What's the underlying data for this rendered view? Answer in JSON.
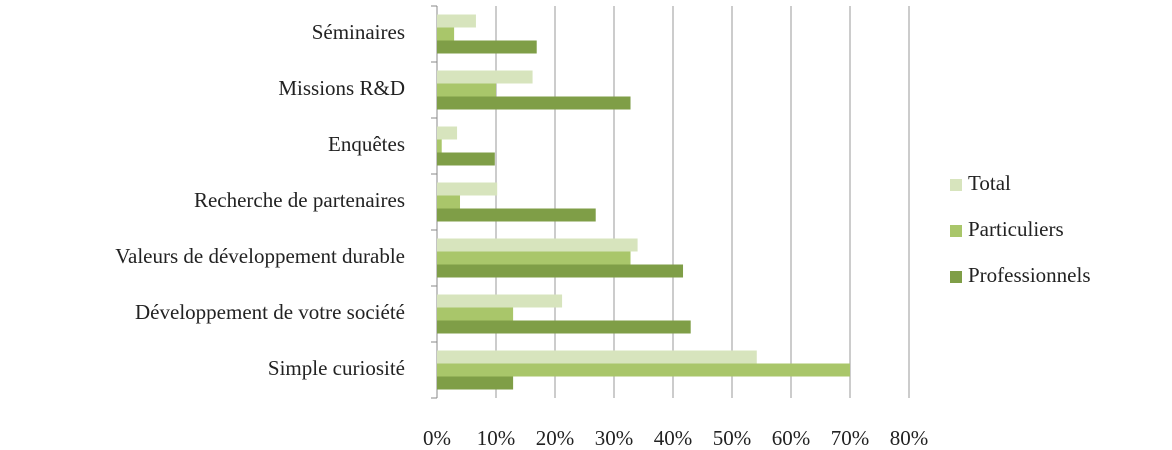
{
  "chart_data": {
    "type": "hbar",
    "categories": [
      "Séminaires",
      "Missions R&D",
      "Enquêtes",
      "Recherche de partenaires",
      "Valeurs de développement durable",
      "Développement de votre société",
      "Simple curiosité"
    ],
    "series": [
      {
        "name": "Total",
        "color": "#d7e4bd",
        "values": [
          6.6,
          16.2,
          3.4,
          10.2,
          34,
          21.2,
          54.2
        ]
      },
      {
        "name": "Particuliers",
        "color": "#a9c66a",
        "values": [
          2.9,
          10,
          0.8,
          3.9,
          32.8,
          12.9,
          70
        ]
      },
      {
        "name": "Professionnels",
        "color": "#7f9e47",
        "values": [
          16.9,
          32.8,
          9.8,
          26.9,
          41.7,
          43,
          12.9
        ]
      }
    ],
    "xlim": [
      0,
      80
    ],
    "xticks": [
      {
        "value": 0,
        "label": "0%"
      },
      {
        "value": 10,
        "label": "10%"
      },
      {
        "value": 20,
        "label": "20%"
      },
      {
        "value": 30,
        "label": "30%"
      },
      {
        "value": 40,
        "label": "40%"
      },
      {
        "value": 50,
        "label": "50%"
      },
      {
        "value": 60,
        "label": "60%"
      },
      {
        "value": 70,
        "label": "70%"
      },
      {
        "value": 80,
        "label": "80%"
      }
    ],
    "grid": true,
    "legend": "right"
  }
}
